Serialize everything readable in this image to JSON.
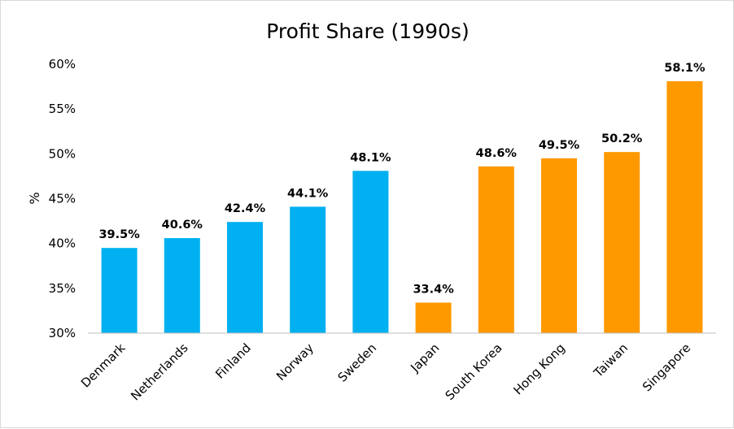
{
  "chart_data": {
    "type": "bar",
    "title": "Profit Share (1990s)",
    "xlabel": "",
    "ylabel": "%",
    "ylim": [
      30,
      60
    ],
    "ytick_step": 5,
    "ytick_labels": [
      "30%",
      "35%",
      "40%",
      "45%",
      "50%",
      "55%",
      "60%"
    ],
    "categories": [
      "Denmark",
      "Netherlands",
      "Finland",
      "Norway",
      "Sweden",
      "Japan",
      "South Korea",
      "Hong Kong",
      "Taiwan",
      "Singapore"
    ],
    "values": [
      39.5,
      40.6,
      42.4,
      44.1,
      48.1,
      33.4,
      48.6,
      49.5,
      50.2,
      58.1
    ],
    "data_labels": [
      "39.5%",
      "40.6%",
      "42.4%",
      "44.1%",
      "48.1%",
      "33.4%",
      "48.6%",
      "49.5%",
      "50.2%",
      "58.1%"
    ],
    "groups": [
      "europe",
      "europe",
      "europe",
      "europe",
      "europe",
      "asia",
      "asia",
      "asia",
      "asia",
      "asia"
    ],
    "grid": false,
    "legend": "none"
  },
  "colors": {
    "europe": "#00b0f0",
    "asia": "#ff9900",
    "axis": "#bfbfbf",
    "text": "#000000"
  }
}
